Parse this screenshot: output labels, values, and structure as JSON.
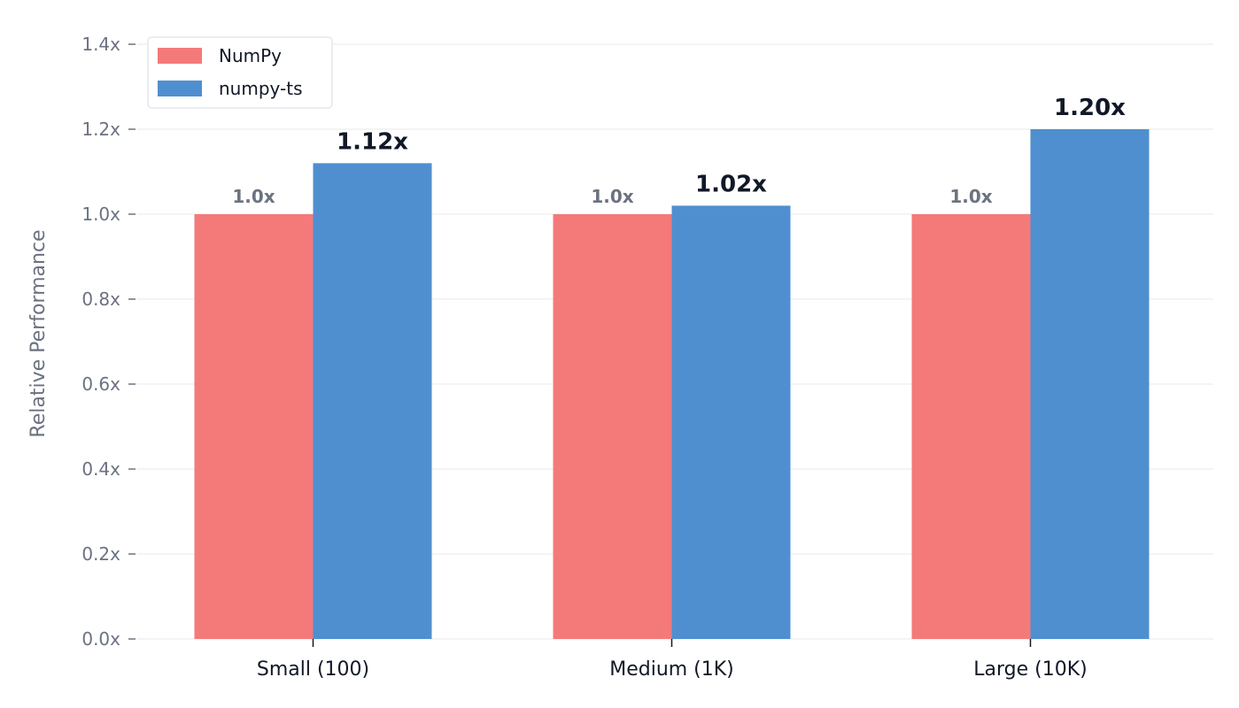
{
  "chart_data": {
    "type": "bar",
    "categories": [
      "Small (100)",
      "Medium (1K)",
      "Large (10K)"
    ],
    "series": [
      {
        "name": "NumPy",
        "values": [
          1.0,
          1.0,
          1.0
        ],
        "labels": [
          "1.0x",
          "1.0x",
          "1.0x"
        ],
        "color": "#f47a7a"
      },
      {
        "name": "numpy-ts",
        "values": [
          1.12,
          1.02,
          1.2
        ],
        "labels": [
          "1.12x",
          "1.02x",
          "1.20x"
        ],
        "color": "#4f8fd0"
      }
    ],
    "ylabel": "Relative Performance",
    "ylim": [
      0,
      1.4
    ],
    "yticks": [
      "0.0x",
      "0.2x",
      "0.4x",
      "0.6x",
      "0.8x",
      "1.0x",
      "1.2x",
      "1.4x"
    ],
    "grid": true,
    "legend_position": "top-left"
  }
}
